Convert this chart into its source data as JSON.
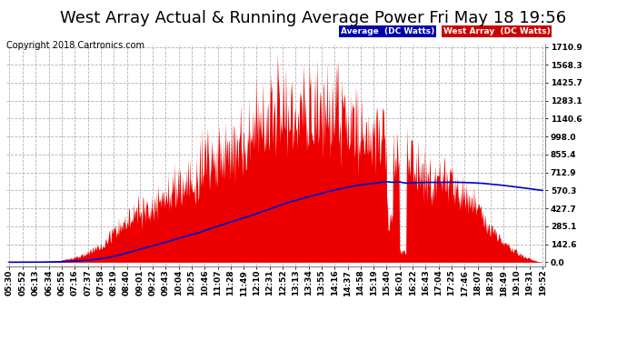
{
  "title": "West Array Actual & Running Average Power Fri May 18 19:56",
  "copyright": "Copyright 2018 Cartronics.com",
  "legend_labels": [
    "Average  (DC Watts)",
    "West Array  (DC Watts)"
  ],
  "legend_bg_colors": [
    "#0000aa",
    "#cc0000"
  ],
  "yticks": [
    0.0,
    142.6,
    285.1,
    427.7,
    570.3,
    712.9,
    855.4,
    998.0,
    1140.6,
    1283.1,
    1425.7,
    1568.3,
    1710.9
  ],
  "ymax": 1710.9,
  "ymin": 0.0,
  "bg_color": "#ffffff",
  "grid_color": "#aaaaaa",
  "bar_color": "#ee0000",
  "avg_line_color": "#0000cc",
  "title_fontsize": 13,
  "copyright_fontsize": 7,
  "tick_fontsize": 6.5,
  "xtick_times": [
    "05:30",
    "05:52",
    "06:13",
    "06:34",
    "06:55",
    "07:16",
    "07:37",
    "07:58",
    "08:19",
    "08:40",
    "09:01",
    "09:22",
    "09:43",
    "10:04",
    "10:25",
    "10:46",
    "11:07",
    "11:28",
    "11:49",
    "12:10",
    "12:31",
    "12:52",
    "13:13",
    "13:34",
    "13:55",
    "14:16",
    "14:37",
    "14:58",
    "15:19",
    "15:40",
    "16:01",
    "16:22",
    "16:43",
    "17:04",
    "17:25",
    "17:46",
    "18:07",
    "18:28",
    "18:49",
    "19:10",
    "19:31",
    "19:52"
  ]
}
